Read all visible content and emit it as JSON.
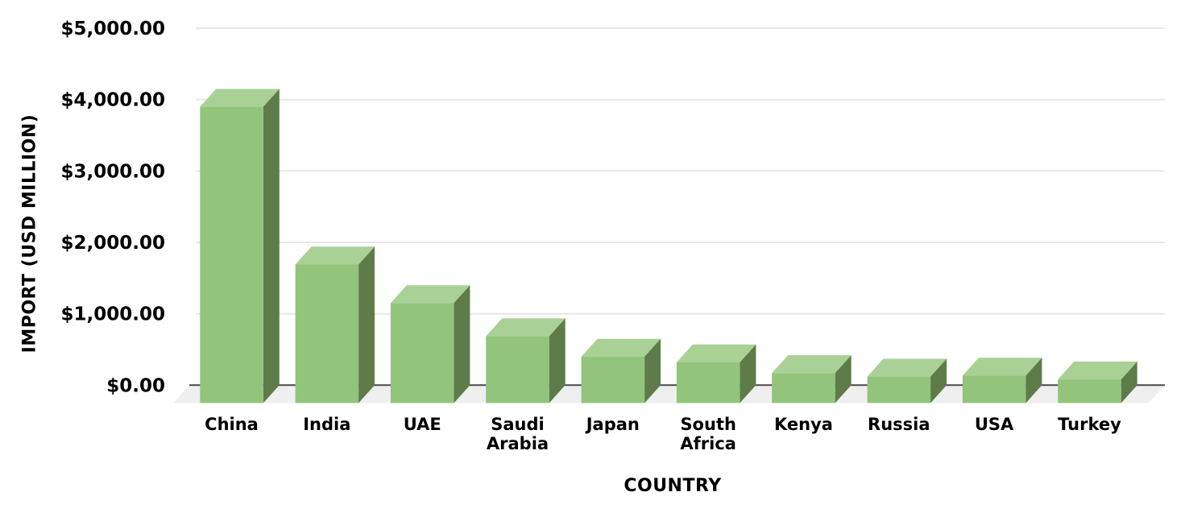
{
  "chart_data": {
    "type": "bar",
    "variant": "3d-column",
    "title": "",
    "series_name": "Import",
    "categories": [
      "China",
      "India",
      "UAE",
      "Saudi Arabia",
      "Japan",
      "South Africa",
      "Kenya",
      "Russia",
      "USA",
      "Turkey"
    ],
    "values": [
      4150,
      1940,
      1400,
      935,
      650,
      570,
      420,
      370,
      385,
      330
    ],
    "xlabel": "COUNTRY",
    "ylabel": "IMPORT (USD MILLION)",
    "ylim": [
      0,
      5000
    ],
    "ytick_step": 1000,
    "ytick_labels": [
      "$0.00",
      "$1,000.00",
      "$2,000.00",
      "$3,000.00",
      "$4,000.00",
      "$5,000.00"
    ],
    "category_display_lines": {
      "Saudi Arabia": [
        "Saudi",
        "Arabia"
      ],
      "South Africa": [
        "South",
        "Africa"
      ]
    },
    "grid": true,
    "legend": false,
    "colors": {
      "bar_front": "#92c47c",
      "bar_top": "#a9d196",
      "bar_side": "#5d7c4a",
      "gridline": "#e7e7e7",
      "axis_line": "#4a4a4a",
      "floor": "#efefef",
      "text": "#000000",
      "background": "#ffffff"
    }
  }
}
